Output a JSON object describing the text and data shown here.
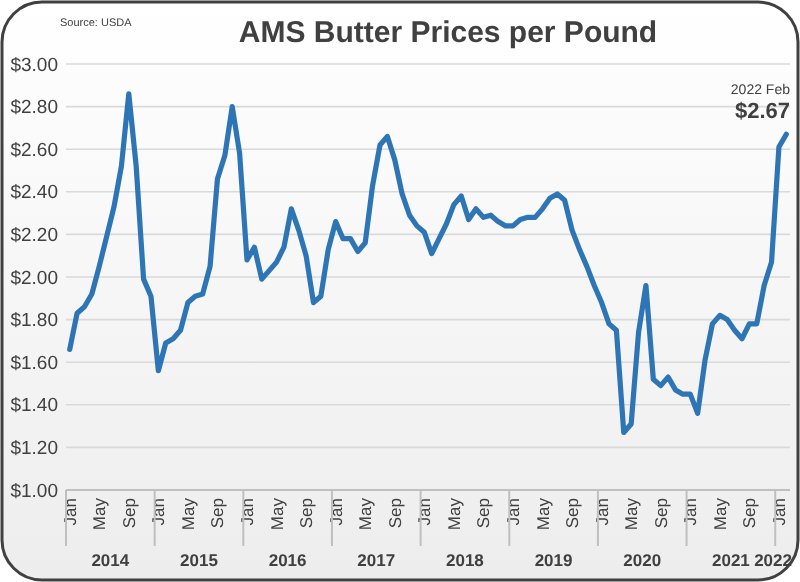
{
  "chart_data": {
    "type": "line",
    "title": "AMS Butter Prices per Pound",
    "categories": [
      "Jan",
      null,
      null,
      null,
      "May",
      null,
      null,
      null,
      "Sep",
      null,
      null,
      null,
      "Jan",
      null,
      null,
      null,
      "May",
      null,
      null,
      null,
      "Sep",
      null,
      null,
      null,
      "Jan",
      null,
      null,
      null,
      "May",
      null,
      null,
      null,
      "Sep",
      null,
      null,
      null,
      "Jan",
      null,
      null,
      null,
      "May",
      null,
      null,
      null,
      "Sep",
      null,
      null,
      null,
      "Jan",
      null,
      null,
      null,
      "May",
      null,
      null,
      null,
      "Sep",
      null,
      null,
      null,
      "Jan",
      null,
      null,
      null,
      "May",
      null,
      null,
      null,
      "Sep",
      null,
      null,
      null,
      "Jan",
      null,
      null,
      null,
      "May",
      null,
      null,
      null,
      "Sep",
      null,
      null,
      null,
      "Jan",
      null,
      null,
      null,
      "May",
      null,
      null,
      null,
      "Sep",
      null,
      null,
      null,
      "Jan",
      null
    ],
    "series": [
      {
        "color": "#2e75b6",
        "values": [
          1.66,
          1.83,
          1.86,
          1.92,
          2.05,
          2.19,
          2.33,
          2.52,
          2.86,
          2.52,
          1.99,
          1.91,
          1.56,
          1.69,
          1.71,
          1.75,
          1.88,
          1.91,
          1.92,
          2.05,
          2.46,
          2.57,
          2.8,
          2.58,
          2.08,
          2.14,
          1.99,
          2.03,
          2.07,
          2.14,
          2.32,
          2.22,
          2.1,
          1.88,
          1.91,
          2.13,
          2.26,
          2.18,
          2.18,
          2.12,
          2.16,
          2.43,
          2.62,
          2.66,
          2.55,
          2.39,
          2.29,
          2.24,
          2.21,
          2.11,
          2.18,
          2.25,
          2.34,
          2.38,
          2.27,
          2.32,
          2.28,
          2.29,
          2.26,
          2.24,
          2.24,
          2.27,
          2.28,
          2.28,
          2.32,
          2.37,
          2.39,
          2.36,
          2.22,
          2.13,
          2.05,
          1.96,
          1.88,
          1.78,
          1.75,
          1.27,
          1.31,
          1.74,
          1.96,
          1.52,
          1.49,
          1.53,
          1.47,
          1.45,
          1.45,
          1.36,
          1.61,
          1.78,
          1.82,
          1.8,
          1.75,
          1.71,
          1.78,
          1.78,
          1.96,
          2.07,
          2.61,
          2.67
        ]
      }
    ],
    "ylim": [
      1,
      3
    ],
    "yticks": [
      {
        "value": 1,
        "label": "$1.00"
      },
      {
        "value": 1.2,
        "label": "$1.20"
      },
      {
        "value": 1.4,
        "label": "$1.40"
      },
      {
        "value": 1.6,
        "label": "$1.60"
      },
      {
        "value": 1.8,
        "label": "$1.80"
      },
      {
        "value": 2,
        "label": "$2.00"
      },
      {
        "value": 2.2,
        "label": "$2.20"
      },
      {
        "value": 2.4,
        "label": "$2.40"
      },
      {
        "value": 2.6,
        "label": "$2.60"
      },
      {
        "value": 2.8,
        "label": "$2.80"
      },
      {
        "value": 3,
        "label": "$3.00"
      }
    ],
    "grid": "y",
    "line_style": "solid",
    "annotations": [
      "Source: USDA",
      "2022 Feb",
      "$2.67",
      "2014",
      "2015",
      "2016",
      "2017",
      "2018",
      "2019",
      "2020",
      "2021",
      "2022"
    ]
  }
}
